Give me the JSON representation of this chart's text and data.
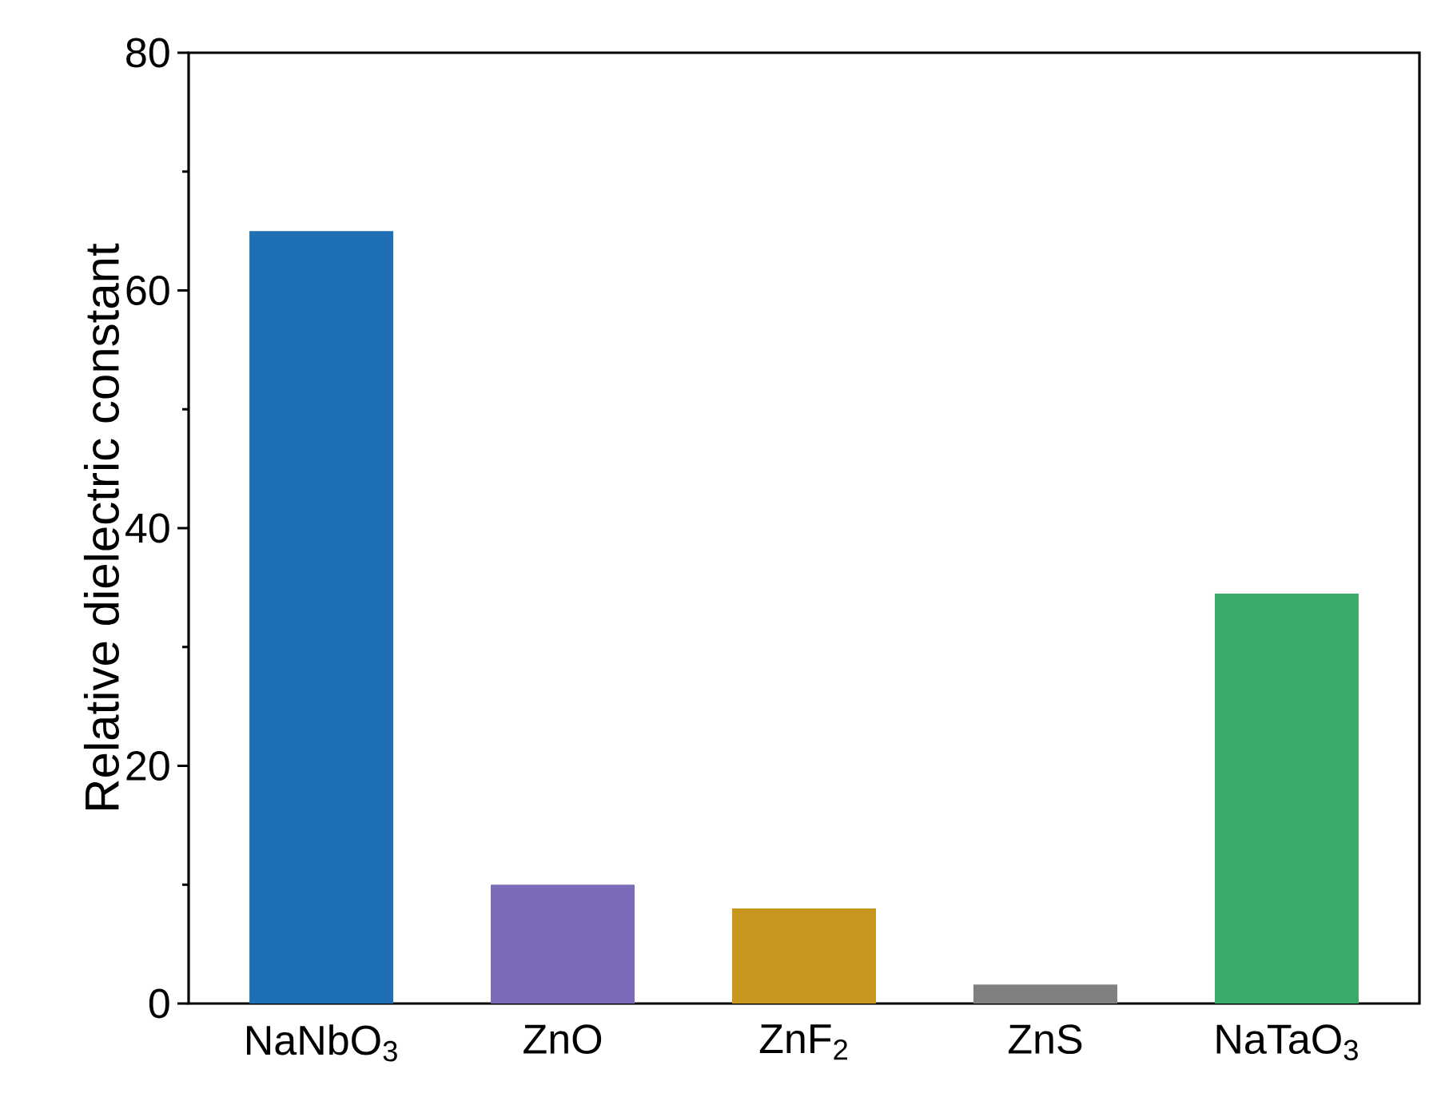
{
  "chart_data": {
    "type": "bar",
    "ylabel": "Relative dielectric constant",
    "categories": [
      "NaNbO$_{3}$",
      "ZnO",
      "ZnF$_{2}$",
      "ZnS",
      "NaTaO$_{3}$"
    ],
    "values": [
      65,
      10,
      8,
      1.6,
      34.5
    ],
    "colors": [
      "#1f6fb4",
      "#7b6bb8",
      "#c9961e",
      "#808080",
      "#3aaa6b"
    ],
    "ylim": [
      0,
      80
    ],
    "yticks": [
      0,
      20,
      40,
      60,
      80
    ],
    "grid": false
  }
}
